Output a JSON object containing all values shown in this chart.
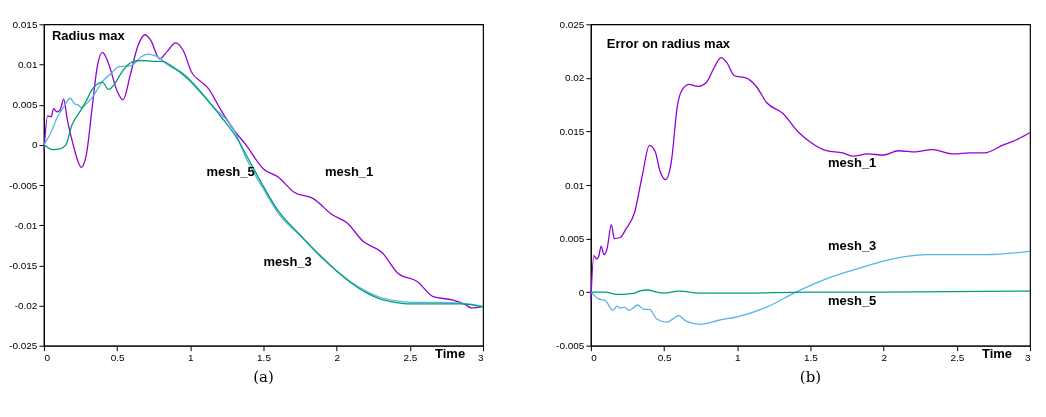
{
  "chart_data": [
    {
      "type": "line",
      "title": "Radius max",
      "xlabel": "Time",
      "xlim": [
        0,
        3
      ],
      "xticks": [
        0,
        0.5,
        1,
        1.5,
        2,
        2.5,
        3
      ],
      "ylim": [
        -0.025,
        0.015
      ],
      "yticks": [
        -0.025,
        -0.02,
        -0.015,
        -0.01,
        -0.005,
        0,
        0.005,
        0.01,
        0.015
      ],
      "grid": false,
      "marker": "none",
      "line_style": "solid",
      "annotations": [
        "(a)"
      ],
      "series": [
        {
          "name": "mesh_1",
          "color": "#9400d3",
          "x": [
            0,
            0.026,
            0.05,
            0.066,
            0.09,
            0.11,
            0.135,
            0.16,
            0.2,
            0.256,
            0.29,
            0.33,
            0.365,
            0.4,
            0.44,
            0.5,
            0.54,
            0.59,
            0.64,
            0.69,
            0.73,
            0.79,
            0.84,
            0.9,
            0.95,
            1.01,
            1.07,
            1.12,
            1.21,
            1.3,
            1.38,
            1.5,
            1.6,
            1.71,
            1.84,
            1.97,
            2.07,
            2.18,
            2.31,
            2.42,
            2.55,
            2.66,
            2.79,
            2.88,
            2.92,
            3.0
          ],
          "values": [
            -0.0008,
            0.0036,
            0.0035,
            0.0045,
            0.0041,
            0.0043,
            0.0057,
            0.0031,
            0,
            -0.0028,
            -0.0012,
            0.0047,
            0.0098,
            0.0115,
            0.0102,
            0.0067,
            0.0056,
            0.0087,
            0.0122,
            0.0137,
            0.013,
            0.0107,
            0.0116,
            0.0127,
            0.0118,
            0.009,
            0.0079,
            0.0071,
            0.0043,
            0.0018,
            0,
            -0.003,
            -0.004,
            -0.0059,
            -0.0067,
            -0.0087,
            -0.0097,
            -0.012,
            -0.0134,
            -0.016,
            -0.017,
            -0.0189,
            -0.0193,
            -0.0199,
            -0.0203,
            -0.0201
          ]
        },
        {
          "name": "mesh_3",
          "color": "#56b4e9",
          "x": [
            0,
            0.05,
            0.09,
            0.135,
            0.18,
            0.21,
            0.23,
            0.26,
            0.29,
            0.33,
            0.4,
            0.46,
            0.51,
            0.6,
            0.66,
            0.71,
            0.77,
            0.86,
            0.95,
            1.03,
            1.16,
            1.3,
            1.38,
            1.5,
            1.6,
            1.75,
            1.9,
            2.0,
            2.1,
            2.2,
            2.3,
            2.4,
            2.5,
            2.7,
            2.85,
            3.0
          ],
          "values": [
            0,
            0.0016,
            0.0034,
            0.0047,
            0.0058,
            0.0051,
            0.005,
            0.0046,
            0.0051,
            0.0059,
            0.0079,
            0.0089,
            0.0097,
            0.0099,
            0.0109,
            0.0113,
            0.011,
            0.0098,
            0.0089,
            0.0075,
            0.0047,
            0.0018,
            -0.0016,
            -0.0055,
            -0.0085,
            -0.0113,
            -0.0141,
            -0.0157,
            -0.0171,
            -0.0182,
            -0.019,
            -0.0194,
            -0.0196,
            -0.0196,
            -0.0197,
            -0.0201
          ]
        },
        {
          "name": "mesh_5",
          "color": "#009e73",
          "x": [
            0,
            0.06,
            0.11,
            0.15,
            0.19,
            0.245,
            0.29,
            0.33,
            0.4,
            0.44,
            0.48,
            0.53,
            0.6,
            0.66,
            0.75,
            0.81,
            0.88,
            0.99,
            1.1,
            1.21,
            1.32,
            1.38,
            1.5,
            1.6,
            1.75,
            1.9,
            2.0,
            2.1,
            2.2,
            2.3,
            2.4,
            2.5,
            2.7,
            2.85,
            3.0
          ],
          "values": [
            0,
            -0.0006,
            -0.0005,
            0,
            0.0024,
            0.0041,
            0.0055,
            0.0069,
            0.0078,
            0.0069,
            0.0075,
            0.009,
            0.0103,
            0.0105,
            0.0104,
            0.0104,
            0.0097,
            0.0081,
            0.0059,
            0.0035,
            0.0008,
            -0.0012,
            -0.0052,
            -0.0082,
            -0.0112,
            -0.014,
            -0.0157,
            -0.0172,
            -0.0184,
            -0.0192,
            -0.0196,
            -0.0198,
            -0.0198,
            -0.0198,
            -0.0202
          ]
        }
      ]
    },
    {
      "type": "line",
      "title": "Error on radius max",
      "xlabel": "Time",
      "xlim": [
        0,
        3
      ],
      "xticks": [
        0,
        0.5,
        1,
        1.5,
        2,
        2.5,
        3
      ],
      "ylim": [
        -0.005,
        0.025
      ],
      "yticks": [
        -0.005,
        0,
        0.005,
        0.01,
        0.015,
        0.02,
        0.025
      ],
      "grid": false,
      "marker": "none",
      "line_style": "solid",
      "annotations": [
        "(b)"
      ],
      "series": [
        {
          "name": "mesh_1",
          "color": "#9400d3",
          "x": [
            0,
            0.02,
            0.04,
            0.055,
            0.07,
            0.09,
            0.11,
            0.14,
            0.16,
            0.2,
            0.24,
            0.3,
            0.35,
            0.4,
            0.44,
            0.47,
            0.51,
            0.55,
            0.59,
            0.62,
            0.67,
            0.73,
            0.79,
            0.84,
            0.89,
            0.93,
            0.98,
            1.06,
            1.13,
            1.2,
            1.31,
            1.42,
            1.5,
            1.61,
            1.72,
            1.79,
            1.89,
            2.0,
            2.1,
            2.22,
            2.33,
            2.48,
            2.59,
            2.69,
            2.81,
            2.92,
            3.0
          ],
          "values": [
            -0.0008,
            0.0034,
            0.0031,
            0.0034,
            0.0043,
            0.0035,
            0.004,
            0.0063,
            0.005,
            0.0051,
            0.0059,
            0.0075,
            0.0108,
            0.0137,
            0.0131,
            0.0114,
            0.0105,
            0.0122,
            0.0173,
            0.0188,
            0.0194,
            0.0192,
            0.0196,
            0.0209,
            0.0219,
            0.0214,
            0.0202,
            0.02,
            0.0192,
            0.0177,
            0.0167,
            0.0149,
            0.014,
            0.0132,
            0.013,
            0.0127,
            0.0129,
            0.0128,
            0.0132,
            0.0131,
            0.0133,
            0.0129,
            0.013,
            0.013,
            0.0137,
            0.0143,
            0.0149
          ]
        },
        {
          "name": "mesh_3",
          "color": "#56b4e9",
          "x": [
            0,
            0.05,
            0.1,
            0.15,
            0.18,
            0.2,
            0.23,
            0.26,
            0.32,
            0.36,
            0.4,
            0.45,
            0.52,
            0.57,
            0.6,
            0.65,
            0.75,
            0.88,
            1.0,
            1.2,
            1.4,
            1.6,
            1.8,
            2.0,
            2.2,
            2.3,
            2.5,
            2.7,
            3.0
          ],
          "values": [
            0,
            -0.0006,
            -0.0008,
            -0.0017,
            -0.0013,
            -0.0015,
            -0.0014,
            -0.0017,
            -0.0012,
            -0.0016,
            -0.0016,
            -0.0025,
            -0.0028,
            -0.0024,
            -0.0022,
            -0.0027,
            -0.003,
            -0.0026,
            -0.0023,
            -0.0014,
            0,
            0.0012,
            0.0021,
            0.0029,
            0.0034,
            0.0035,
            0.0035,
            0.0035,
            0.0038
          ]
        },
        {
          "name": "mesh_5",
          "color": "#009e73",
          "x": [
            0,
            0.1,
            0.17,
            0.22,
            0.3,
            0.33,
            0.39,
            0.45,
            0.5,
            0.6,
            0.75,
            1.0,
            1.5,
            2.0,
            3.0
          ],
          "values": [
            0,
            0,
            -0.0002,
            -0.0002,
            -0.0001,
            0.0001,
            0.0002,
            0,
            -0.0001,
            0.0001,
            -0.0001,
            -0.0001,
            0,
            0,
            0.0001
          ]
        }
      ]
    }
  ]
}
